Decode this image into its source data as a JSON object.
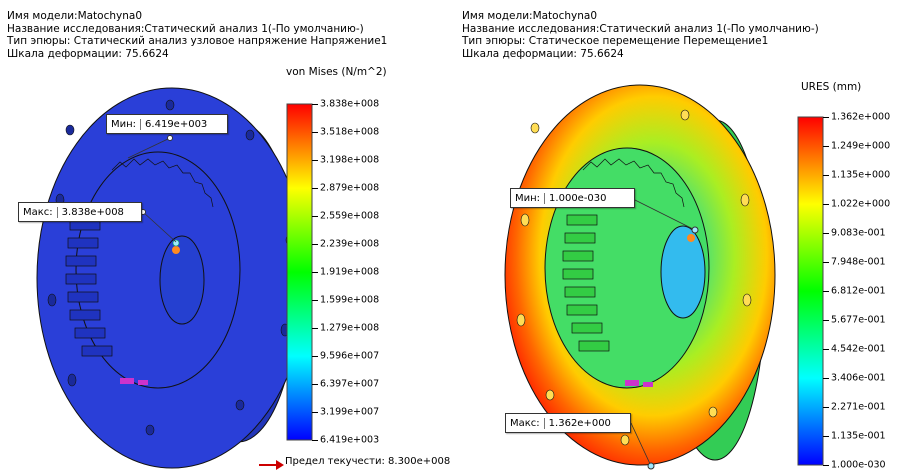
{
  "left": {
    "info": {
      "model": "Имя модели:Matochyna0",
      "study": "Название исследования:Статический анализ 1(-По умолчанию-)",
      "plot_type": "Тип эпюры: Статический анализ узловое напряжение Напряжение1",
      "deform_scale": "Шкала деформации: 75.6624"
    },
    "scale_title": "von Mises (N/m^2)",
    "ticks": [
      "3.838e+008",
      "3.518e+008",
      "3.198e+008",
      "2.879e+008",
      "2.559e+008",
      "2.239e+008",
      "1.919e+008",
      "1.599e+008",
      "1.279e+008",
      "9.596e+007",
      "6.397e+007",
      "3.199e+007",
      "6.419e+003"
    ],
    "min_callout": {
      "key": "Мин:",
      "value": "6.419e+003"
    },
    "max_callout": {
      "key": "Макс:",
      "value": "3.838e+008"
    },
    "yield": "Предел текучести: 8.300e+008",
    "colors": {
      "yield_arrow": "#cc0000",
      "part": "#2a3fd8"
    }
  },
  "right": {
    "info": {
      "model": "Имя модели:Matochyna0",
      "study": "Название исследования:Статический анализ 1(-По умолчанию-)",
      "plot_type": "Тип эпюры: Статическое перемещение Перемещение1",
      "deform_scale": "Шкала деформации: 75.6624"
    },
    "scale_title": "URES (mm)",
    "ticks": [
      "1.362e+000",
      "1.249e+000",
      "1.135e+000",
      "1.022e+000",
      "9.083e-001",
      "7.948e-001",
      "6.812e-001",
      "5.677e-001",
      "4.542e-001",
      "3.406e-001",
      "2.271e-001",
      "1.135e-001",
      "1.000e-030"
    ],
    "min_callout": {
      "key": "Мин:",
      "value": "1.000e-030"
    },
    "max_callout": {
      "key": "Макс:",
      "value": "1.362e+000"
    }
  }
}
